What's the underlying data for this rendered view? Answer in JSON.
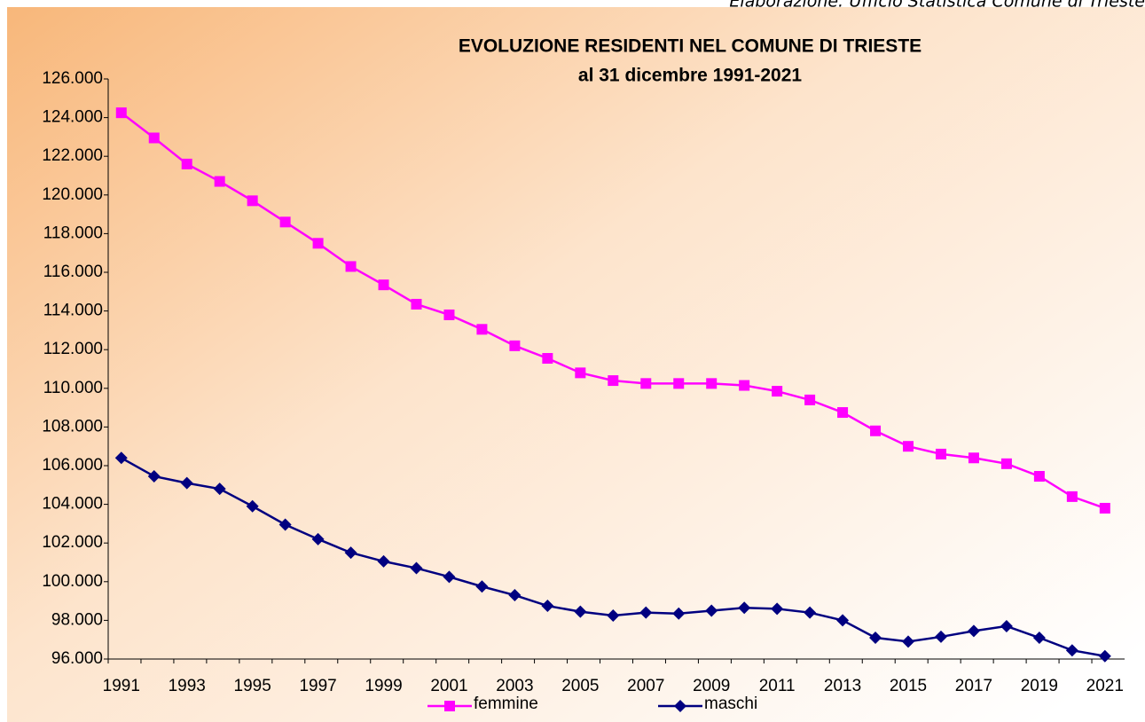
{
  "source": "Elaborazione: Ufficio Statistica Comune di Trieste",
  "chart_data": {
    "type": "line",
    "title": "EVOLUZIONE  RESIDENTI  NEL COMUNE DI TRIESTE",
    "subtitle": "al 31 dicembre  1991-2021",
    "categories": [
      "1991",
      null,
      "1993",
      null,
      "1995",
      null,
      "1997",
      null,
      "1999",
      null,
      "2001",
      null,
      "2003",
      null,
      "2005",
      null,
      "2007",
      null,
      "2009",
      null,
      "2011",
      null,
      "2013",
      null,
      "2015",
      null,
      "2017",
      null,
      "2019",
      null,
      "2021"
    ],
    "series": [
      {
        "name": "femmine",
        "color": "#ff00ff",
        "marker": "square",
        "values": [
          124250,
          122950,
          121600,
          120700,
          119700,
          118600,
          117500,
          116300,
          115350,
          114350,
          113800,
          113050,
          112200,
          111550,
          110800,
          110400,
          110250,
          110250,
          110250,
          110150,
          109850,
          109400,
          108750,
          107800,
          107000,
          106600,
          106400,
          106100,
          105450,
          104400,
          103800
        ]
      },
      {
        "name": "maschi",
        "color": "#000080",
        "marker": "diamond",
        "values": [
          106400,
          105450,
          105100,
          104800,
          103900,
          102950,
          102200,
          101500,
          101050,
          100700,
          100250,
          99750,
          99300,
          98750,
          98450,
          98250,
          98400,
          98350,
          98500,
          98650,
          98600,
          98400,
          98000,
          97100,
          96900,
          97150,
          97450,
          97700,
          97100,
          96450,
          96150
        ]
      }
    ],
    "ylim": [
      96000,
      126000
    ],
    "yticks": [
      {
        "value": 96000,
        "label": "96.000"
      },
      {
        "value": 98000,
        "label": "98.000"
      },
      {
        "value": 100000,
        "label": "100.000"
      },
      {
        "value": 102000,
        "label": "102.000"
      },
      {
        "value": 104000,
        "label": "104.000"
      },
      {
        "value": 106000,
        "label": "106.000"
      },
      {
        "value": 108000,
        "label": "108.000"
      },
      {
        "value": 110000,
        "label": "110.000"
      },
      {
        "value": 112000,
        "label": "112.000"
      },
      {
        "value": 114000,
        "label": "114.000"
      },
      {
        "value": 116000,
        "label": "116.000"
      },
      {
        "value": 118000,
        "label": "118.000"
      },
      {
        "value": 120000,
        "label": "120.000"
      },
      {
        "value": 122000,
        "label": "122.000"
      },
      {
        "value": 124000,
        "label": "124.000"
      },
      {
        "value": 126000,
        "label": "126.000"
      }
    ],
    "grid": false,
    "legend": "bottom"
  }
}
